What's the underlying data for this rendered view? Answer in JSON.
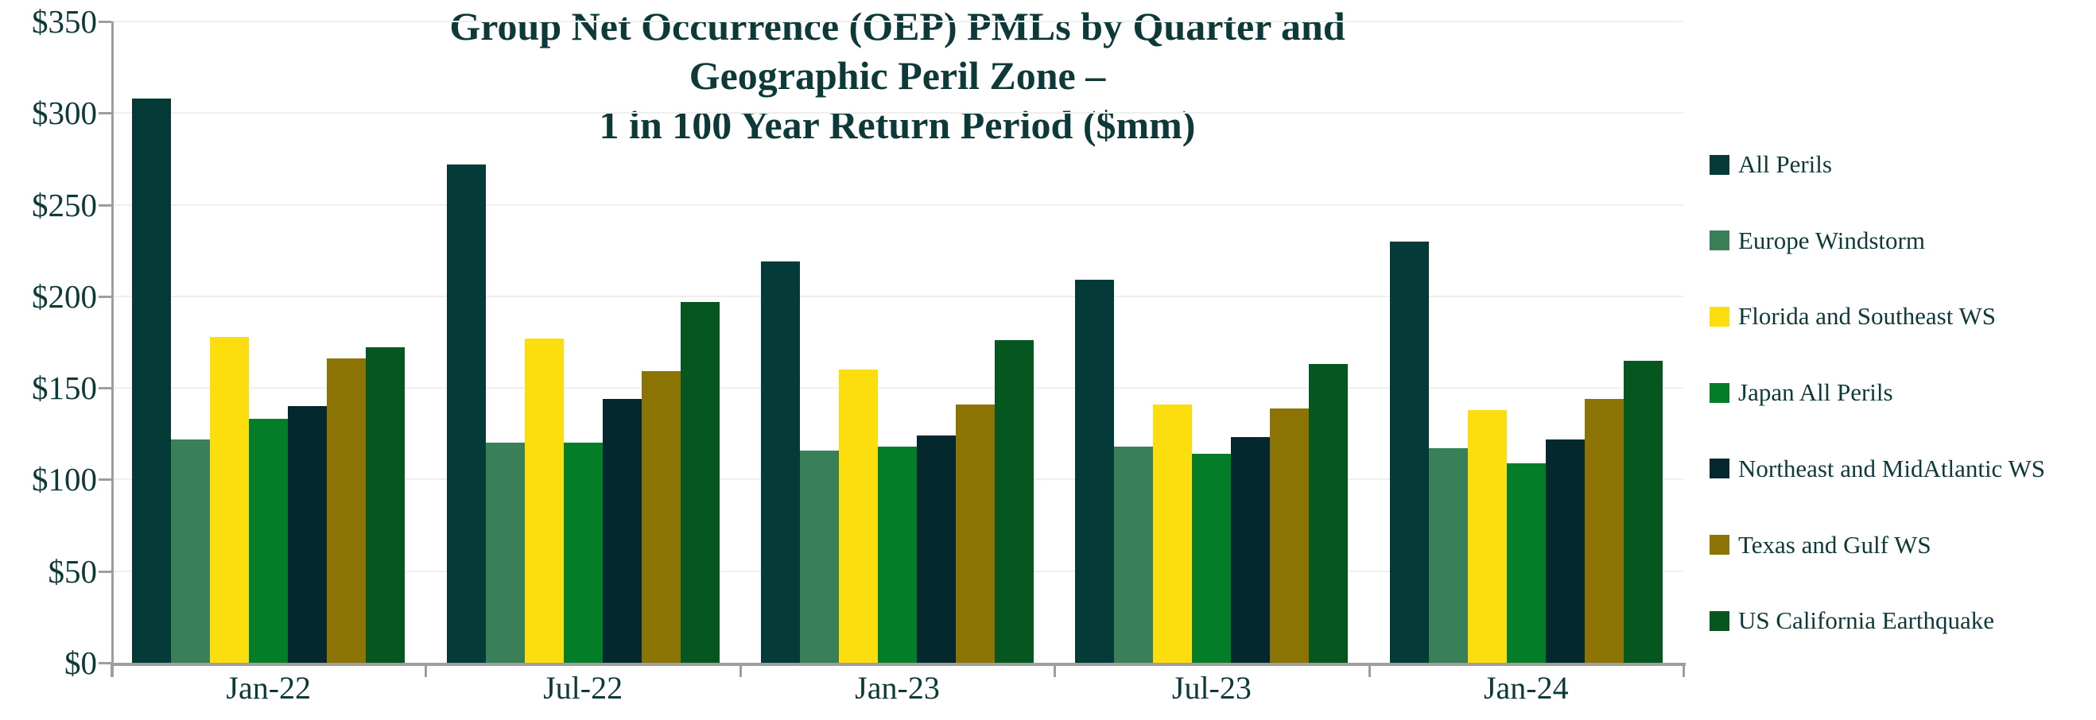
{
  "title": {
    "lines": [
      "Group Net Occurrence (OEP) PMLs by Quarter and",
      "Geographic Peril Zone –",
      "1 in 100 Year Return Period ($mm)"
    ]
  },
  "chart_data": {
    "type": "bar",
    "title": "Group Net Occurrence (OEP) PMLs by Quarter and Geographic Peril Zone – 1 in 100 Year Return Period ($mm)",
    "categories": [
      "Jan-22",
      "Jul-22",
      "Jan-23",
      "Jul-23",
      "Jan-24"
    ],
    "series": [
      {
        "name": "All Perils",
        "color": "#043b38",
        "values": [
          308,
          272,
          219,
          209,
          230
        ]
      },
      {
        "name": "Europe Windstorm",
        "color": "#398058",
        "values": [
          122,
          120,
          116,
          118,
          117
        ]
      },
      {
        "name": "Florida and Southeast WS",
        "color": "#fcdd0d",
        "values": [
          178,
          177,
          160,
          141,
          138
        ]
      },
      {
        "name": "Japan All Perils",
        "color": "#047d28",
        "values": [
          133,
          120,
          118,
          114,
          109
        ]
      },
      {
        "name": "Northeast and MidAtlantic WS",
        "color": "#03292e",
        "values": [
          140,
          144,
          124,
          123,
          122
        ]
      },
      {
        "name": "Texas and Gulf WS",
        "color": "#8b7403",
        "values": [
          166,
          159,
          141,
          139,
          144
        ]
      },
      {
        "name": "US California Earthquake",
        "color": "#05561f",
        "values": [
          172,
          197,
          176,
          163,
          165
        ]
      }
    ],
    "ylim": [
      0,
      350
    ],
    "ytick_step": 50,
    "y_ticks": [
      "$0",
      "$50",
      "$100",
      "$150",
      "$200",
      "$250",
      "$300",
      "$350"
    ],
    "xlabel": "",
    "ylabel": "",
    "grid": true,
    "legend_position": "right",
    "axis_color": "#9e9e9e",
    "gridline_color": "#efefef",
    "text_color": "#0d3938"
  }
}
